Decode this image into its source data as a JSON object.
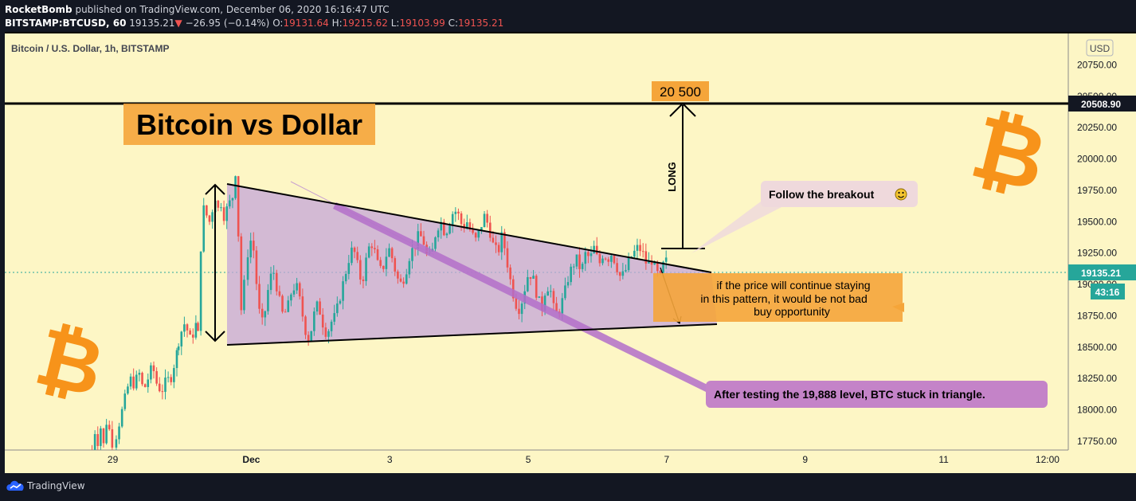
{
  "header": {
    "publisher": "RocketBomb",
    "published_text": "published on TradingView.com, December 06, 2020 16:16:47 UTC",
    "symbol": "BITSTAMP:BTCUSD, 60",
    "last_price": "19135.21",
    "change_arrow": "▼",
    "change": "−26.95 (−0.14%)",
    "o_label": "O:",
    "o_value": "19131.64",
    "h_label": "H:",
    "h_value": "19215.62",
    "l_label": "L:",
    "l_value": "19103.99",
    "c_label": "C:",
    "c_value": "19135.21"
  },
  "chart_title": "Bitcoin / U.S. Dollar, 1h, BITSTAMP",
  "currency_button": "USD",
  "footer": {
    "brand": "TradingView"
  },
  "annotations": {
    "title": "Bitcoin vs Dollar",
    "target_label": "20 500",
    "long_label": "LONG",
    "note_breakout": "Follow the breakout",
    "note_pattern_lines": [
      "if the price will continue staying",
      "in this pattern, it would be not bad",
      "buy opportunity"
    ],
    "note_test": "After testing the 19,888 level, BTC stuck in triangle.",
    "horizontal_level_label": "20508.90",
    "price_label": "19135.21",
    "countdown_label": "43:16"
  },
  "colors": {
    "background": "#fdf6c5",
    "up": "#26a69a",
    "down": "#ef5350",
    "triangle_fill": "#c4a6d8",
    "note_orange": "#f5a53a",
    "note_purple": "#c483c8",
    "note_pink": "#efd9dc",
    "bitcoin_icon": "#f7931a"
  },
  "chart_data": {
    "type": "candlestick",
    "title": "Bitcoin / U.S. Dollar, 1h, BITSTAMP",
    "y_ticks": [
      17750,
      18000,
      18250,
      18500,
      18750,
      19000,
      19250,
      19500,
      19750,
      20000,
      20250,
      20500,
      20750
    ],
    "y_tick_labels": [
      "17750.00",
      "18000.00",
      "18250.00",
      "18500.00",
      "18750.00",
      "19000.00",
      "19250.00",
      "19500.00",
      "19750.00",
      "20000.00",
      "20250.00",
      "20500.00",
      "20750.00"
    ],
    "ylim": [
      17680,
      21000
    ],
    "x_ticks": [
      {
        "label": "29",
        "day": 29
      },
      {
        "label": "Dec",
        "day": 31
      },
      {
        "label": "3",
        "day": 33
      },
      {
        "label": "5",
        "day": 35
      },
      {
        "label": "7",
        "day": 37
      },
      {
        "label": "9",
        "day": 39
      },
      {
        "label": "11",
        "day": 41
      },
      {
        "label": "12:00",
        "day": 42.5
      }
    ],
    "xlim": [
      27.44,
      42.8
    ],
    "series": [
      {
        "x": 28.7,
        "p": [
          17680,
          17800,
          17860,
          17750,
          17820,
          17900,
          17720,
          17880,
          17930,
          17840,
          17700,
          17780,
          17850
        ]
      },
      {
        "x": 29.05,
        "p": [
          17800,
          17950,
          18100,
          18250,
          18200,
          18300,
          18150,
          18250,
          18350,
          18200,
          18150,
          18230,
          18250,
          18400,
          18550
        ]
      },
      {
        "x": 29.95,
        "p": [
          18550,
          18650,
          18600,
          18700,
          18650,
          18600,
          18550,
          18600,
          18650,
          18700,
          18580
        ]
      },
      {
        "x": 30.23,
        "p": [
          18600,
          18900,
          19300,
          19700,
          19600,
          19400,
          19550,
          19700,
          19500,
          19300,
          19600,
          19750,
          19700,
          19450,
          19600,
          19800,
          19650,
          19500,
          19550,
          19700,
          19600,
          19500,
          19650,
          19800,
          19700,
          19600,
          19900,
          19600,
          19400,
          19100,
          18800,
          18600,
          19000,
          19300,
          19250
        ]
      },
      {
        "x": 30.95,
        "p": [
          19250,
          19400,
          19000,
          18650,
          18800,
          19050,
          19100,
          18900,
          18750,
          18800,
          18950,
          19000,
          18850,
          18650,
          18550,
          18750,
          18850,
          18700,
          18600,
          18700,
          18750,
          18900,
          19050,
          19200,
          19300,
          19150,
          19000,
          19200,
          19350,
          19250,
          19100,
          19150,
          19300,
          19200,
          19050,
          19000,
          19100,
          19250,
          19300,
          19400,
          19350,
          19200,
          19250,
          19450,
          19500,
          19400,
          19500,
          19600,
          19550,
          19450,
          19500,
          19400,
          19350,
          19450,
          19550,
          19450,
          19300,
          19250,
          19400,
          19200,
          19000,
          18850,
          18800,
          18950,
          19100,
          19050,
          18900,
          18800,
          19000,
          18950,
          18750,
          18800,
          18900,
          19050,
          19150,
          19200,
          19100,
          19250,
          19200,
          19300,
          19150,
          19250,
          19200,
          19250,
          19150,
          19050,
          19100,
          19200,
          19250,
          19300,
          19250,
          19150,
          19200,
          19100,
          19050,
          19200,
          19150
        ]
      }
    ],
    "trendlines": [
      {
        "name": "triangle-upper",
        "from": [
          30.2,
          19850
        ],
        "to": [
          37.4,
          19165
        ]
      },
      {
        "name": "triangle-lower",
        "from": [
          30.2,
          18540
        ],
        "to": [
          37.6,
          18700
        ]
      },
      {
        "name": "triangle-apex",
        "from": [
          30.2,
          18540
        ],
        "to": [
          37.4,
          19165
        ]
      },
      {
        "name": "horizontal-resistance",
        "value": 20508.9
      }
    ]
  }
}
